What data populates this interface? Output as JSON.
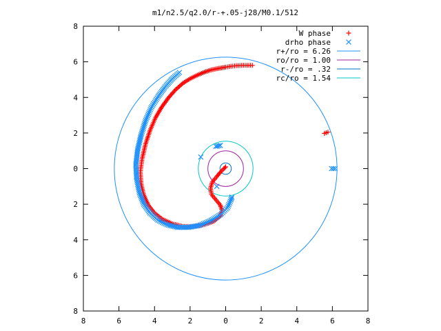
{
  "chart_data": {
    "type": "scatter",
    "title": "m1/n2.5/q2.0/r-+.05-j28/M0.1/512",
    "xlim": [
      -8,
      8
    ],
    "ylim": [
      -8,
      8
    ],
    "x_tick_labels": [
      "8",
      "6",
      "4",
      "2",
      "0",
      "2",
      "4",
      "6",
      "8"
    ],
    "y_tick_labels": [
      "8",
      "6",
      "4",
      "2",
      "0",
      "2",
      "4",
      "6",
      "8"
    ],
    "grid": false,
    "legend_position": "top-right",
    "colors": {
      "w_phase": "#ff0000",
      "drho_phase": "#1e90ff",
      "r_plus": "#1e90ff",
      "r_o": "#a020a0",
      "r_minus": "#0070c0",
      "r_c": "#00c8c8"
    },
    "series": [
      {
        "name": "W phase",
        "marker": "plus",
        "points": [
          [
            1.5,
            5.8
          ],
          [
            1.2,
            5.8
          ],
          [
            0.9,
            5.8
          ],
          [
            0.6,
            5.78
          ],
          [
            0.3,
            5.75
          ],
          [
            0.0,
            5.7
          ],
          [
            -0.4,
            5.63
          ],
          [
            -0.8,
            5.55
          ],
          [
            -1.2,
            5.42
          ],
          [
            -1.6,
            5.25
          ],
          [
            -2.0,
            5.05
          ],
          [
            -2.4,
            4.8
          ],
          [
            -2.8,
            4.45
          ],
          [
            -3.2,
            4.0
          ],
          [
            -3.6,
            3.45
          ],
          [
            -3.95,
            2.85
          ],
          [
            -4.25,
            2.15
          ],
          [
            -4.5,
            1.4
          ],
          [
            -4.7,
            0.55
          ],
          [
            -4.8,
            -0.2
          ],
          [
            -4.75,
            -0.9
          ],
          [
            -4.6,
            -1.5
          ],
          [
            -4.35,
            -2.05
          ],
          [
            -4.0,
            -2.5
          ],
          [
            -3.55,
            -2.85
          ],
          [
            -3.0,
            -3.1
          ],
          [
            -2.4,
            -3.25
          ],
          [
            -1.8,
            -3.25
          ],
          [
            -1.2,
            -3.15
          ],
          [
            -0.65,
            -2.95
          ],
          [
            -0.3,
            -2.65
          ],
          [
            -0.2,
            -2.35
          ],
          [
            -0.3,
            -2.05
          ],
          [
            -0.55,
            -1.75
          ],
          [
            -0.8,
            -1.45
          ],
          [
            -0.85,
            -1.1
          ],
          [
            -0.75,
            -0.75
          ],
          [
            -0.5,
            -0.45
          ],
          [
            -0.3,
            -0.2
          ],
          [
            -0.1,
            0.0
          ],
          [
            0.0,
            0.1
          ],
          [
            5.75,
            2.05
          ],
          [
            5.55,
            1.98
          ]
        ]
      },
      {
        "name": "drho phase",
        "marker": "cross",
        "points": [
          [
            -2.6,
            5.4
          ],
          [
            -3.0,
            5.05
          ],
          [
            -3.4,
            4.6
          ],
          [
            -3.8,
            4.05
          ],
          [
            -4.2,
            3.4
          ],
          [
            -4.5,
            2.7
          ],
          [
            -4.75,
            1.9
          ],
          [
            -4.95,
            1.05
          ],
          [
            -5.05,
            0.2
          ],
          [
            -5.0,
            -0.6
          ],
          [
            -4.85,
            -1.35
          ],
          [
            -4.6,
            -2.0
          ],
          [
            -4.25,
            -2.5
          ],
          [
            -3.8,
            -2.9
          ],
          [
            -3.3,
            -3.15
          ],
          [
            -2.7,
            -3.3
          ],
          [
            -2.1,
            -3.3
          ],
          [
            -1.5,
            -3.2
          ],
          [
            -0.9,
            -2.95
          ],
          [
            -0.3,
            -2.6
          ],
          [
            0.1,
            -2.2
          ],
          [
            0.3,
            -1.75
          ],
          [
            0.35,
            -1.6
          ],
          [
            -0.3,
            1.3
          ],
          [
            -0.55,
            1.25
          ],
          [
            -1.4,
            0.65
          ],
          [
            -0.5,
            -1.0
          ],
          [
            6.15,
            0.0
          ],
          [
            5.95,
            0.0
          ]
        ]
      }
    ],
    "circles": [
      {
        "name": "r+/ro = 6.26",
        "radius": 6.26
      },
      {
        "name": "ro/ro = 1.00",
        "radius": 1.0
      },
      {
        "name": "r-/ro = .32",
        "radius": 0.32
      },
      {
        "name": "rc/ro = 1.54",
        "radius": 1.54
      }
    ],
    "legend": [
      {
        "label": "W phase",
        "kind": "marker-plus"
      },
      {
        "label": "drho phase",
        "kind": "marker-cross"
      },
      {
        "label": "r+/ro = 6.26",
        "kind": "line"
      },
      {
        "label": "ro/ro = 1.00",
        "kind": "line"
      },
      {
        "label": "r-/ro = .32",
        "kind": "line"
      },
      {
        "label": "rc/ro = 1.54",
        "kind": "line"
      }
    ]
  }
}
